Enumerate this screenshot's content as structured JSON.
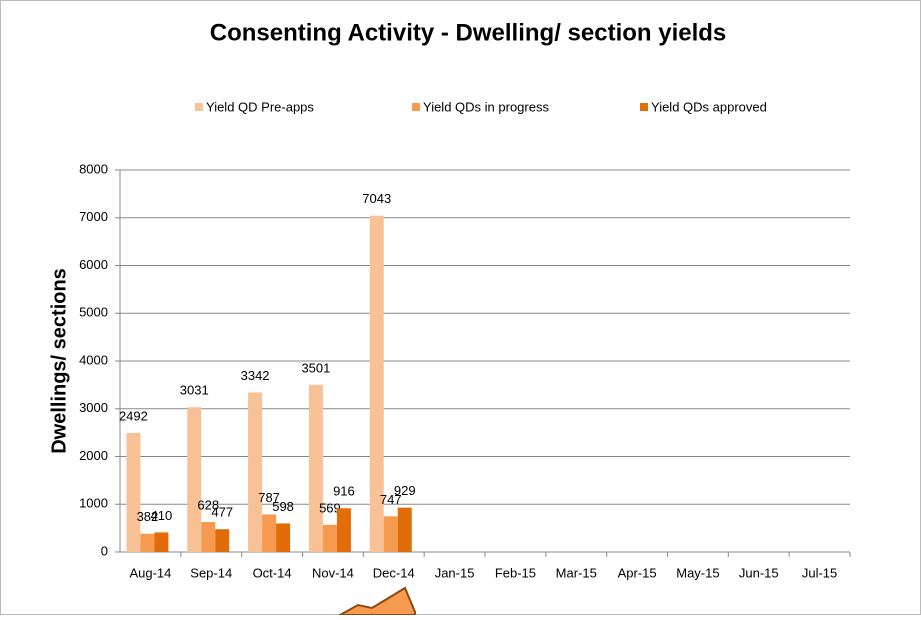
{
  "chart_data": {
    "type": "bar",
    "title": "Consenting Activity - Dwelling/ section yields",
    "y_label": "Dwellings/ sections",
    "categories": [
      "Aug-14",
      "Sep-14",
      "Oct-14",
      "Nov-14",
      "Dec-14",
      "Jan-15",
      "Feb-15",
      "Mar-15",
      "Apr-15",
      "May-15",
      "Jun-15",
      "Jul-15"
    ],
    "series": [
      {
        "name": "Yield QD Pre-apps",
        "color": "#f9c196",
        "values": [
          2492,
          3031,
          3342,
          3501,
          7043,
          null,
          null,
          null,
          null,
          null,
          null,
          null
        ]
      },
      {
        "name": "Yield QDs in progress",
        "color": "#f59a4e",
        "values": [
          382,
          628,
          787,
          569,
          747,
          null,
          null,
          null,
          null,
          null,
          null,
          null
        ]
      },
      {
        "name": "Yield QDs approved",
        "color": "#e36c0a",
        "values": [
          410,
          477,
          598,
          916,
          929,
          null,
          null,
          null,
          null,
          null,
          null,
          null
        ]
      }
    ],
    "ylim": [
      0,
      8000
    ],
    "yticks": [
      0,
      1000,
      2000,
      3000,
      4000,
      5000,
      6000,
      7000,
      8000
    ],
    "grid": true,
    "legend": "top"
  }
}
